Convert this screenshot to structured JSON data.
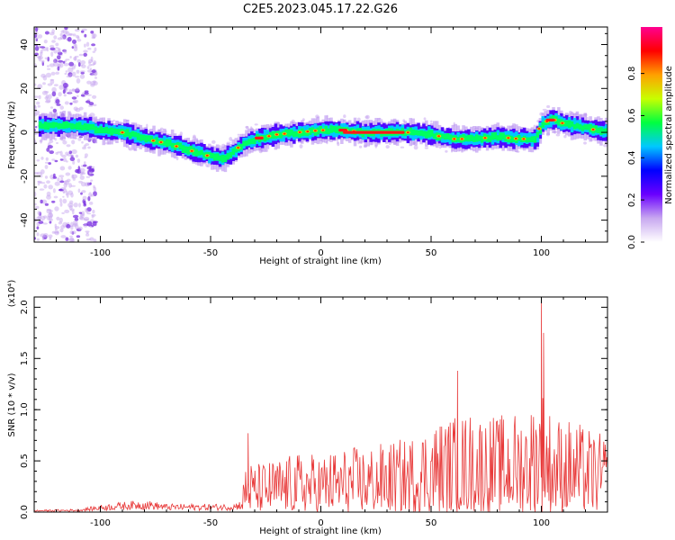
{
  "title": "C2E5.2023.045.17.22.G26",
  "chart_data": [
    {
      "type": "heatmap",
      "xlabel": "Height of straight line (km)",
      "ylabel": "Frequency (Hz)",
      "xlim": [
        -130,
        130
      ],
      "ylim": [
        -50,
        48
      ],
      "xticks": [
        -100,
        -50,
        0,
        50,
        100
      ],
      "yticks": [
        -40,
        -20,
        0,
        20,
        40
      ],
      "ridge": {
        "x": [
          -130,
          -110,
          -100,
          -90,
          -80,
          -70,
          -60,
          -50,
          -45,
          -40,
          -35,
          -30,
          -20,
          -10,
          0,
          10,
          20,
          30,
          40,
          50,
          60,
          70,
          80,
          90,
          97,
          100,
          105,
          110,
          120,
          130
        ],
        "y": [
          3,
          3,
          1,
          0,
          -3,
          -5,
          -8,
          -11,
          -12,
          -9,
          -5,
          -3,
          -1,
          0,
          1,
          1,
          0,
          0,
          0,
          -1,
          -3,
          -3,
          -2,
          -3,
          -3,
          4,
          6,
          4,
          2,
          0
        ]
      },
      "colorbar": {
        "label": "Normalized spectral amplitude",
        "range": [
          0,
          1
        ],
        "ticks": [
          "0.0",
          "0.2",
          "0.4",
          "0.6",
          "0.8"
        ],
        "colors": [
          "#ffffff",
          "#c8a8f0",
          "#6a00ff",
          "#0000ff",
          "#00c8ff",
          "#00ff40",
          "#c8ff00",
          "#ffa000",
          "#ff0000",
          "#ff0090"
        ]
      }
    },
    {
      "type": "line",
      "xlabel": "Height of straight line (km)",
      "ylabel": "SNR (10 * v/v)",
      "yscale_label": "(x10⁴)",
      "xlim": [
        -130,
        130
      ],
      "ylim": [
        0,
        2.1
      ],
      "xticks": [
        -100,
        -50,
        0,
        50,
        100
      ],
      "yticks": [
        "0.0",
        "0.5",
        "1.0",
        "1.5",
        "2.0"
      ],
      "series_color": "#e83a3a",
      "envelope": {
        "x": [
          -130,
          -110,
          -100,
          -90,
          -80,
          -70,
          -60,
          -50,
          -40,
          -36,
          -34,
          -30,
          -20,
          -10,
          0,
          10,
          20,
          30,
          40,
          50,
          60,
          70,
          80,
          90,
          95,
          100,
          105,
          110,
          120,
          130
        ],
        "y": [
          0.02,
          0.03,
          0.07,
          0.1,
          0.12,
          0.08,
          0.08,
          0.08,
          0.08,
          0.12,
          0.5,
          0.45,
          0.5,
          0.55,
          0.55,
          0.6,
          0.62,
          0.65,
          0.7,
          0.85,
          0.9,
          0.95,
          0.9,
          0.95,
          1.0,
          1.2,
          0.9,
          0.9,
          0.8,
          0.7
        ]
      },
      "peaks": [
        {
          "x": -33,
          "y": 0.77
        },
        {
          "x": 62,
          "y": 1.38
        },
        {
          "x": 100,
          "y": 2.1
        },
        {
          "x": 101,
          "y": 1.75
        }
      ]
    }
  ]
}
